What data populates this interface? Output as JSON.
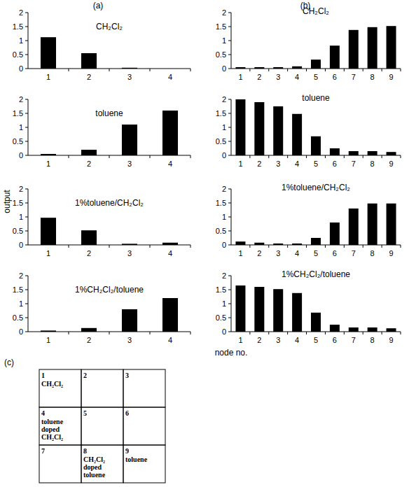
{
  "figure": {
    "panel_labels": [
      "(a)",
      "(b)",
      "(c)"
    ],
    "ylabel": "output",
    "xlabel": "node no."
  },
  "chart_data": [
    {
      "type": "bar",
      "title": "CH₂Cl₂",
      "categories": [
        "1",
        "2",
        "3",
        "4"
      ],
      "values": [
        1.12,
        0.55,
        0.03,
        0.0
      ],
      "color": "#000000",
      "ylim": [
        0,
        2
      ],
      "yticks": [
        0,
        0.5,
        1,
        1.5,
        2
      ],
      "grid": false
    },
    {
      "type": "bar",
      "title": "toluene",
      "categories": [
        "1",
        "2",
        "3",
        "4"
      ],
      "values": [
        0.05,
        0.2,
        1.1,
        1.6
      ],
      "color": "#000000",
      "ylim": [
        0,
        2
      ],
      "yticks": [
        0,
        0.5,
        1,
        1.5,
        2
      ],
      "grid": false
    },
    {
      "type": "bar",
      "title": "1%toluene/CH₂Cl₂",
      "categories": [
        "1",
        "2",
        "3",
        "4"
      ],
      "values": [
        0.97,
        0.52,
        0.04,
        0.08
      ],
      "color": "#000000",
      "ylim": [
        0,
        2
      ],
      "yticks": [
        0,
        0.5,
        1,
        1.5,
        2
      ],
      "grid": false
    },
    {
      "type": "bar",
      "title": "1%CH₂Cl₂/toluene",
      "categories": [
        "1",
        "2",
        "3",
        "4"
      ],
      "values": [
        0.04,
        0.13,
        0.8,
        1.2
      ],
      "color": "#000000",
      "ylim": [
        0,
        2
      ],
      "yticks": [
        0,
        0.5,
        1,
        1.5,
        2
      ],
      "grid": false
    },
    {
      "type": "bar",
      "title": "CH₂Cl₂",
      "categories": [
        "1",
        "2",
        "3",
        "4",
        "5",
        "6",
        "7",
        "8",
        "9"
      ],
      "values": [
        0.05,
        0.05,
        0.05,
        0.08,
        0.32,
        0.82,
        1.38,
        1.48,
        1.52
      ],
      "color": "#000000",
      "ylim": [
        0,
        2
      ],
      "yticks": [
        0,
        0.5,
        1,
        1.5,
        2
      ],
      "grid": false
    },
    {
      "type": "bar",
      "title": "toluene",
      "categories": [
        "1",
        "2",
        "3",
        "4",
        "5",
        "6",
        "7",
        "8",
        "9"
      ],
      "values": [
        2.0,
        1.9,
        1.75,
        1.48,
        0.68,
        0.25,
        0.15,
        0.15,
        0.12
      ],
      "color": "#000000",
      "ylim": [
        0,
        2
      ],
      "yticks": [
        0,
        0.5,
        1,
        1.5,
        2
      ],
      "grid": false
    },
    {
      "type": "bar",
      "title": "1%toluene/CH₂Cl₂",
      "categories": [
        "1",
        "2",
        "3",
        "4",
        "5",
        "6",
        "7",
        "8",
        "9"
      ],
      "values": [
        0.12,
        0.08,
        0.05,
        0.05,
        0.25,
        0.8,
        1.3,
        1.48,
        1.48
      ],
      "color": "#000000",
      "ylim": [
        0,
        2
      ],
      "yticks": [
        0,
        0.5,
        1,
        1.5,
        2
      ],
      "grid": false
    },
    {
      "type": "bar",
      "title": "1%CH₂Cl₂/toluene",
      "categories": [
        "1",
        "2",
        "3",
        "4",
        "5",
        "6",
        "7",
        "8",
        "9"
      ],
      "values": [
        1.65,
        1.6,
        1.52,
        1.38,
        0.68,
        0.25,
        0.15,
        0.15,
        0.12
      ],
      "color": "#000000",
      "ylim": [
        0,
        2
      ],
      "yticks": [
        0,
        0.5,
        1,
        1.5,
        2
      ],
      "grid": false
    }
  ],
  "grid_map": {
    "cells": [
      {
        "number": "1",
        "lines": [
          "CH₂Cl₂"
        ]
      },
      {
        "number": "2"
      },
      {
        "number": "3"
      },
      {
        "number": "4",
        "lines": [
          "toluene",
          "doped",
          "CH₂Cl₂"
        ]
      },
      {
        "number": "5"
      },
      {
        "number": "6"
      },
      {
        "number": "7"
      },
      {
        "number": "8",
        "lines": [
          "CH₂Cl₂",
          "doped",
          "toluene"
        ]
      },
      {
        "number": "9",
        "lines": [
          "toluene"
        ]
      }
    ]
  }
}
